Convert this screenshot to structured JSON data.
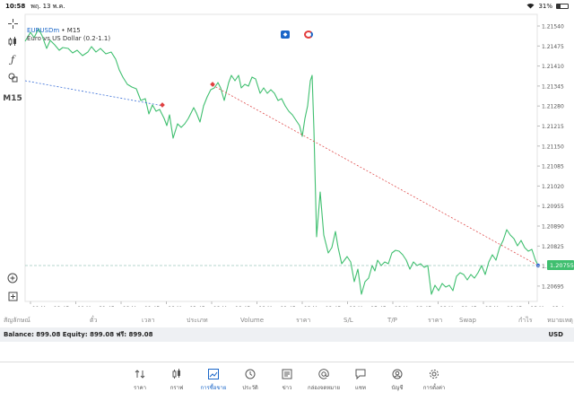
{
  "status": {
    "time": "10:58",
    "date": "พฤ. 13 พ.ค.",
    "battery": "31%",
    "battery_level": 0.31
  },
  "chart": {
    "symbol": "EURUSDm",
    "timeframe": "M15",
    "indicator": "Euro vs US Dollar (0.2-1.1)",
    "price_labels": [
      "1.21540",
      "1.21475",
      "1.21410",
      "1.21345",
      "1.21280",
      "1.21215",
      "1.21150",
      "1.21085",
      "1.21020",
      "1.20955",
      "1.20890",
      "1.20825",
      "1.20755",
      "1.20695"
    ],
    "current_price": "1.20755",
    "time_labels": [
      "11 May 18:45",
      "11 May 21:45",
      "12 May 00:45",
      "12 May 03:45",
      "12 May 06:45",
      "12 May 09:45",
      "12 May 12:45",
      "12 May 15:45",
      "12 May 18:45",
      "12 May 21:45",
      "13 May 00:45",
      "13 May 03:4"
    ],
    "colors": {
      "line": "#3fbf6f",
      "accent": "#1a66c8",
      "trend_blue": "#3a6fd8",
      "trend_red": "#e05050",
      "marker": "#e04040"
    }
  },
  "toolbar": {
    "timeframe_label": "M15"
  },
  "table_header": {
    "columns": [
      "สัญลักษณ์",
      "ตั๋ว",
      "เวลา",
      "ประเภท",
      "Volume",
      "ราคา",
      "S/L",
      "T/P",
      "ราคา",
      "Swap",
      "กำไร",
      "หมายเหตุ"
    ]
  },
  "balance": {
    "text": "Balance: 899.08 Equity: 899.08 ฟรี: 899.08",
    "currency": "USD"
  },
  "tabs": [
    {
      "label": "ราคา",
      "icon": "sort-arrows-icon",
      "active": false
    },
    {
      "label": "กราฟ",
      "icon": "candles-icon",
      "active": false
    },
    {
      "label": "การซื้อขาย",
      "icon": "trade-chart-icon",
      "active": true
    },
    {
      "label": "ประวัติ",
      "icon": "history-icon",
      "active": false
    },
    {
      "label": "ข่าว",
      "icon": "news-icon",
      "active": false
    },
    {
      "label": "กล่องจดหมาย",
      "icon": "mailbox-icon",
      "active": false
    },
    {
      "label": "แชท",
      "icon": "chat-icon",
      "active": false
    },
    {
      "label": "บัญชี",
      "icon": "account-icon",
      "active": false
    },
    {
      "label": "การตั้งค่า",
      "icon": "settings-icon",
      "active": false
    }
  ]
}
